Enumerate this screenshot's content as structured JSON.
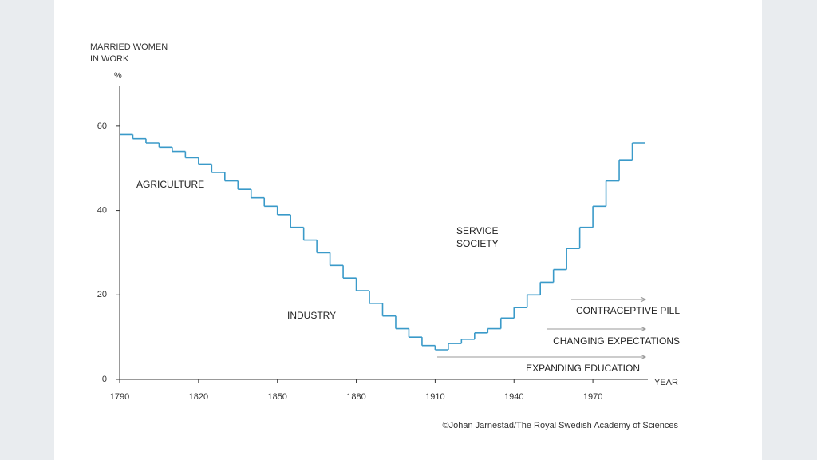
{
  "chart_data": {
    "type": "step-line",
    "y_axis_label": [
      "MARRIED WOMEN",
      "IN WORK"
    ],
    "y_unit": "%",
    "x_axis_label": "YEAR",
    "x": [
      1790,
      1795,
      1800,
      1805,
      1810,
      1815,
      1820,
      1825,
      1830,
      1835,
      1840,
      1845,
      1850,
      1855,
      1860,
      1865,
      1870,
      1875,
      1880,
      1885,
      1890,
      1895,
      1900,
      1905,
      1910,
      1915,
      1920,
      1925,
      1930,
      1935,
      1940,
      1945,
      1950,
      1955,
      1960,
      1965,
      1970,
      1975,
      1980,
      1985
    ],
    "values": [
      58,
      57,
      56,
      55,
      54,
      52.5,
      51,
      49,
      47,
      45,
      43,
      41,
      39,
      36,
      33,
      30,
      27,
      24,
      21,
      18,
      15,
      12,
      10,
      8,
      7,
      8.5,
      9.5,
      11,
      12,
      14.5,
      17,
      20,
      23,
      26,
      31,
      36,
      41,
      47,
      52,
      56
    ],
    "color": "#3a9ac9",
    "xlim": [
      1790,
      1990
    ],
    "ylim": [
      0,
      70
    ],
    "xticks": [
      1790,
      1820,
      1850,
      1880,
      1910,
      1940,
      1970
    ],
    "yticks": [
      0,
      20,
      40,
      60
    ],
    "annotations": [
      "AGRICULTURE",
      "INDUSTRY",
      "SERVICE",
      "SOCIETY",
      "CONTRACEPTIVE PILL",
      "CHANGING EXPECTATIONS",
      "EXPANDING EDUCATION"
    ],
    "credit": "©Johan Jarnestad/The Royal Swedish Academy of Sciences"
  }
}
